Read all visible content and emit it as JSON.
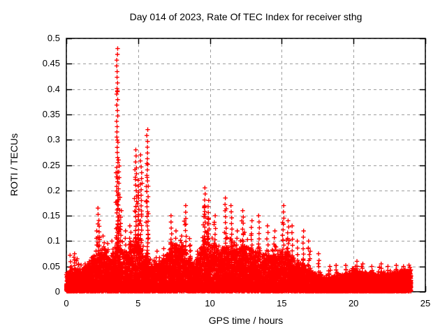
{
  "chart_data": {
    "type": "scatter",
    "title": "Day 014 of 2023, Rate Of TEC Index for receiver sthg",
    "xlabel": "GPS time / hours",
    "ylabel": "ROTI / TECUs",
    "xlim": [
      0,
      25
    ],
    "ylim": [
      0,
      0.5
    ],
    "xticks": [
      0,
      5,
      10,
      15,
      20,
      25
    ],
    "xtick_labels": [
      "0",
      "5",
      "10",
      "15",
      "20",
      "25"
    ],
    "yticks": [
      0,
      0.05,
      0.1,
      0.15,
      0.2,
      0.25,
      0.3,
      0.35,
      0.4,
      0.45,
      0.5
    ],
    "ytick_labels": [
      "0",
      "0.05",
      "0.1",
      "0.15",
      "0.2",
      "0.25",
      "0.3",
      "0.35",
      "0.4",
      "0.45",
      "0.5"
    ],
    "grid": true,
    "grid_color": "#9e9e9e",
    "axis_color": "#000000",
    "background_color": "#ffffff",
    "marker": "plus",
    "marker_color": "#ff0000",
    "legend": "none",
    "x_data_range": [
      0,
      24
    ],
    "description": "Dense scatter of ROTI values over 24 h: continuous red band near 0-0.05 TECUs with vertical spike clusters; largest spike ~0.48 at ~3.5 h, secondary peaks ~0.32 at ~5.6 h and ~0.28 at ~4.9 h; activity 0.1-0.2 between 7 h and 16 h, quiet (<0.06) after 17 h.",
    "baseline_envelope": {
      "hours_step": 0.5,
      "band_top": [
        0.035,
        0.045,
        0.04,
        0.05,
        0.07,
        0.08,
        0.07,
        0.085,
        0.07,
        0.09,
        0.085,
        0.07,
        0.055,
        0.06,
        0.07,
        0.085,
        0.09,
        0.065,
        0.05,
        0.1,
        0.09,
        0.085,
        0.08,
        0.09,
        0.075,
        0.08,
        0.075,
        0.07,
        0.065,
        0.065,
        0.08,
        0.07,
        0.055,
        0.05,
        0.042,
        0.032,
        0.028,
        0.028,
        0.03,
        0.032,
        0.042,
        0.038,
        0.034,
        0.036,
        0.035,
        0.034,
        0.038,
        0.04,
        0.042
      ]
    },
    "spikes": [
      [
        0.25,
        0.072
      ],
      [
        0.6,
        0.075
      ],
      [
        0.8,
        0.065
      ],
      [
        1.3,
        0.055
      ],
      [
        1.75,
        0.06
      ],
      [
        2.1,
        0.12
      ],
      [
        2.25,
        0.165
      ],
      [
        2.6,
        0.11
      ],
      [
        2.85,
        0.095
      ],
      [
        3.2,
        0.1
      ],
      [
        3.55,
        0.48
      ],
      [
        3.65,
        0.26
      ],
      [
        3.8,
        0.16
      ],
      [
        4.1,
        0.12
      ],
      [
        4.45,
        0.13
      ],
      [
        4.85,
        0.28
      ],
      [
        5.0,
        0.22
      ],
      [
        5.2,
        0.27
      ],
      [
        5.65,
        0.32
      ],
      [
        6.3,
        0.08
      ],
      [
        6.8,
        0.085
      ],
      [
        7.3,
        0.15
      ],
      [
        7.6,
        0.12
      ],
      [
        8.0,
        0.11
      ],
      [
        8.3,
        0.17
      ],
      [
        8.6,
        0.105
      ],
      [
        9.1,
        0.08
      ],
      [
        9.65,
        0.205
      ],
      [
        9.9,
        0.18
      ],
      [
        10.35,
        0.15
      ],
      [
        11.1,
        0.185
      ],
      [
        11.5,
        0.17
      ],
      [
        11.9,
        0.12
      ],
      [
        12.3,
        0.16
      ],
      [
        12.9,
        0.14
      ],
      [
        13.4,
        0.15
      ],
      [
        14.0,
        0.13
      ],
      [
        14.5,
        0.12
      ],
      [
        15.1,
        0.17
      ],
      [
        15.45,
        0.14
      ],
      [
        15.7,
        0.13
      ],
      [
        16.1,
        0.1
      ],
      [
        16.5,
        0.12
      ],
      [
        16.9,
        0.1
      ],
      [
        17.6,
        0.075
      ],
      [
        18.3,
        0.05
      ],
      [
        18.8,
        0.052
      ],
      [
        19.45,
        0.052
      ],
      [
        20.2,
        0.06
      ],
      [
        20.6,
        0.055
      ],
      [
        21.3,
        0.05
      ],
      [
        21.9,
        0.055
      ],
      [
        22.4,
        0.05
      ],
      [
        23.0,
        0.052
      ],
      [
        23.5,
        0.05
      ],
      [
        23.9,
        0.048
      ]
    ]
  }
}
